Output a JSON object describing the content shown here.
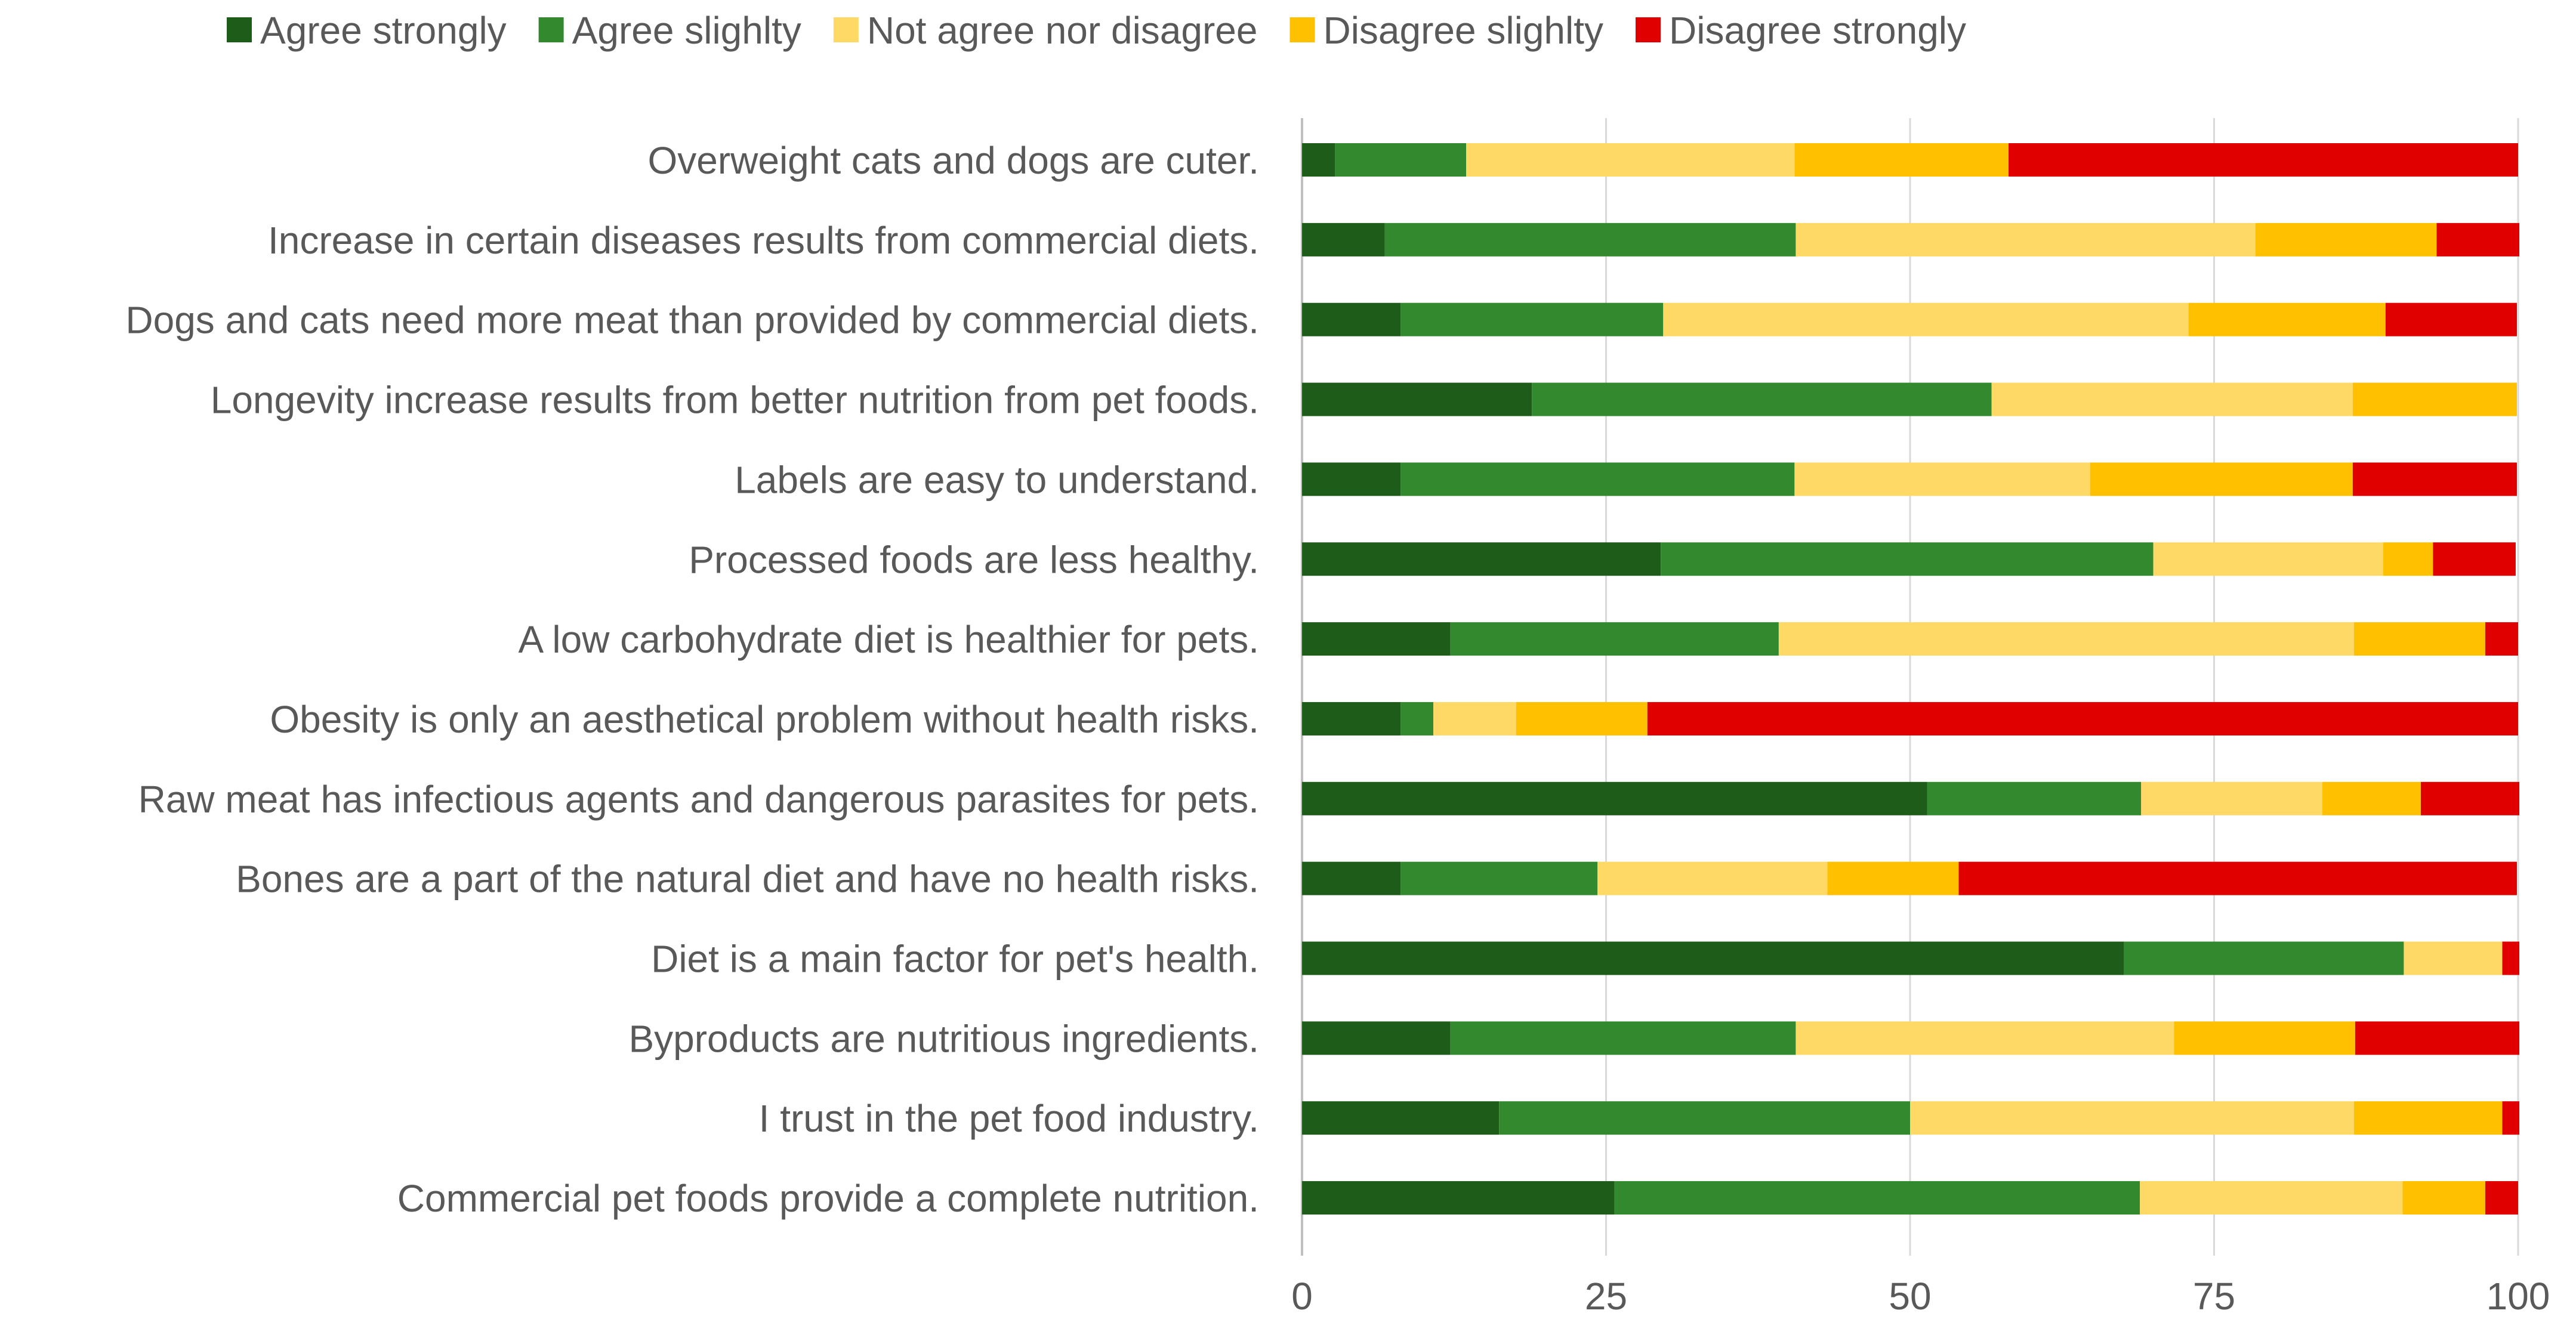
{
  "chart_data": {
    "type": "bar",
    "orientation": "horizontal",
    "stacked": true,
    "title": "",
    "xlabel": "",
    "ylabel": "",
    "xlim": [
      0,
      100
    ],
    "x_ticks": [
      0,
      25,
      50,
      75,
      100
    ],
    "grid": true,
    "legend_position": "top",
    "categories": [
      "Overweight cats and dogs are cuter.",
      "Increase in certain diseases results from commercial diets.",
      "Dogs and cats need more meat than provided by commercial diets.",
      "Longevity increase results from better nutrition from pet foods.",
      "Labels are easy to understand.",
      "Processed foods are less healthy.",
      "A low carbohydrate diet is healthier for pets.",
      "Obesity is only an aesthetical problem without health risks.",
      "Raw meat has infectious agents and dangerous parasites for pets.",
      "Bones are a part of the natural diet and have no health risks.",
      "Diet is a main factor for pet's health.",
      "Byproducts are nutritious ingredients.",
      "I trust in the pet food industry.",
      "Commercial pet foods provide a complete nutrition."
    ],
    "series": [
      {
        "name": "Agree strongly",
        "color": "#1e5c1a",
        "values": [
          2.7,
          6.8,
          8.1,
          18.9,
          8.1,
          29.5,
          12.2,
          8.1,
          51.4,
          8.1,
          67.6,
          12.2,
          16.2,
          25.7
        ]
      },
      {
        "name": "Agree slighlty",
        "color": "#338a2e",
        "values": [
          10.8,
          33.8,
          21.6,
          37.8,
          32.4,
          40.5,
          27.0,
          2.7,
          17.6,
          16.2,
          23.0,
          28.4,
          33.8,
          43.2
        ]
      },
      {
        "name": "Not agree nor disagree",
        "color": "#ffd966",
        "values": [
          27.0,
          37.8,
          43.2,
          29.7,
          24.3,
          18.9,
          47.3,
          6.8,
          14.9,
          18.9,
          8.1,
          31.1,
          36.5,
          21.6
        ]
      },
      {
        "name": "Disagree slighlty",
        "color": "#ffc000",
        "values": [
          17.6,
          14.9,
          16.2,
          13.5,
          21.6,
          4.1,
          10.8,
          10.8,
          8.1,
          10.8,
          0.0,
          14.9,
          12.2,
          6.8
        ]
      },
      {
        "name": "Disagree strongly",
        "color": "#e00000",
        "values": [
          41.9,
          6.8,
          10.8,
          0.0,
          13.5,
          6.8,
          2.7,
          71.6,
          8.1,
          45.9,
          1.4,
          13.5,
          1.4,
          2.7
        ]
      }
    ]
  },
  "colors": {
    "gridline": "#d9d9d9",
    "axis_line": "#bfbfbf",
    "text": "#595959"
  }
}
